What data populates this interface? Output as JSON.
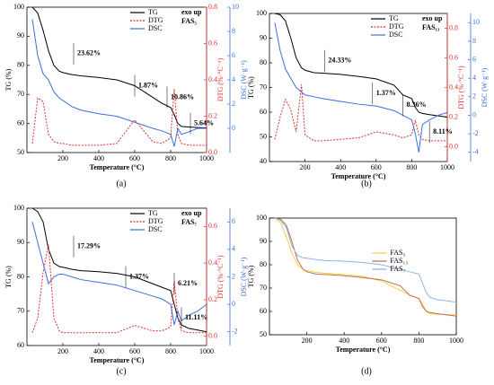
{
  "chart_data": [
    {
      "type": "line",
      "caption": "(a)",
      "xlabel": "Temperature (°C)",
      "ylabel": "TG (%)",
      "y2label": "DTG (%·°C⁻¹)",
      "y3label": "DSC (W·g⁻¹)",
      "xlim": [
        0,
        1000
      ],
      "xticks": [
        200,
        400,
        600,
        800,
        1000
      ],
      "ylim": [
        50,
        100
      ],
      "yticks": [
        50,
        60,
        70,
        80,
        90,
        100
      ],
      "y2lim": [
        0,
        0.8
      ],
      "y2ticks": [
        {
          "value": 0,
          "label": "0.0"
        },
        0.2,
        0.4,
        0.6,
        0.8
      ],
      "y3lim": [
        -2,
        10
      ],
      "y3ticks": [
        0,
        2,
        4,
        6,
        8,
        10
      ],
      "x": [
        30,
        60,
        90,
        120,
        150,
        180,
        200,
        250,
        300,
        400,
        500,
        600,
        700,
        750,
        800,
        820,
        840,
        860,
        900,
        950,
        1000
      ],
      "series": [
        {
          "name": "TG",
          "color": "#000000",
          "axis": "y",
          "values": [
            100,
            98,
            92,
            85,
            80,
            78,
            77.5,
            76.8,
            76.4,
            75.8,
            75,
            73,
            69,
            67,
            65.5,
            63,
            60,
            59,
            58.8,
            58.6,
            58.5
          ]
        },
        {
          "name": "DTG",
          "color": "#e03030",
          "axis": "y2",
          "values": [
            0.05,
            0.3,
            0.28,
            0.1,
            0.06,
            0.05,
            0.05,
            0.04,
            0.04,
            0.04,
            0.05,
            0.18,
            0.06,
            0.05,
            0.08,
            0.35,
            0.1,
            0.05,
            0.04,
            0.04,
            0.04
          ]
        },
        {
          "name": "DSC",
          "color": "#3a6fd8",
          "axis": "y3",
          "values": [
            9,
            6,
            4.5,
            4,
            3,
            2.5,
            2.3,
            1.8,
            1.5,
            1.2,
            1,
            0.5,
            0,
            -0.2,
            -0.5,
            -1.5,
            0,
            -0.5,
            -0.3,
            0,
            0
          ]
        }
      ],
      "annotations": [
        "23.62%",
        "1.87%",
        "10.86%",
        "5.64%"
      ],
      "exo": "exo up",
      "sample": "FAS₅"
    },
    {
      "type": "line",
      "caption": "(b)",
      "xlabel": "Temperature (°C)",
      "ylabel": "TG (%)",
      "y2label": "DTG (%·°C⁻¹)",
      "y3label": "DSC (W·g⁻¹)",
      "xlim": [
        0,
        1000
      ],
      "xticks": [
        200,
        400,
        600,
        800,
        1000
      ],
      "ylim": [
        40,
        100
      ],
      "yticks": [
        40,
        50,
        60,
        70,
        80,
        90,
        100
      ],
      "y2lim": [
        -0.1,
        0.9
      ],
      "y2ticks": [
        {
          "value": 0,
          "label": "0.0"
        },
        0.2,
        0.4,
        0.6,
        0.8
      ],
      "y3lim": [
        -5,
        11
      ],
      "y3ticks": [
        -4,
        -2,
        0,
        2,
        4,
        6,
        8,
        10
      ],
      "x": [
        30,
        60,
        90,
        120,
        150,
        180,
        200,
        250,
        300,
        400,
        500,
        600,
        700,
        750,
        800,
        820,
        840,
        860,
        900,
        950,
        1000
      ],
      "series": [
        {
          "name": "TG",
          "color": "#000000",
          "axis": "y",
          "values": [
            100,
            99.5,
            97,
            90,
            82,
            78,
            77,
            76,
            75.8,
            75.3,
            74.5,
            73.5,
            71,
            67,
            65.5,
            62,
            60,
            59.5,
            59,
            58.5,
            58
          ]
        },
        {
          "name": "DTG",
          "color": "#e03030",
          "axis": "y2",
          "values": [
            0.05,
            0.2,
            0.32,
            0.25,
            0.1,
            0.42,
            0.08,
            0.04,
            0.04,
            0.05,
            0.06,
            0.1,
            0.08,
            0.06,
            0.08,
            0.18,
            0.08,
            0.05,
            0.04,
            0.04,
            0.04
          ]
        },
        {
          "name": "DSC",
          "color": "#3a6fd8",
          "axis": "y3",
          "values": [
            10,
            7,
            5,
            4,
            3,
            2.5,
            2.2,
            2,
            1.8,
            1.5,
            1.2,
            1,
            0.5,
            0,
            -0.5,
            -2,
            -4,
            -1,
            -0.5,
            0,
            0.3
          ]
        }
      ],
      "annotations": [
        "24.33%",
        "1.37%",
        "8.36%",
        "8.11%"
      ],
      "exo": "exo up",
      "sample": "FAS₁₃"
    },
    {
      "type": "line",
      "caption": "(c)",
      "xlabel": "Temperature (°C)",
      "ylabel": "TG (%)",
      "y2label": "DTG (%·°C⁻¹)",
      "y3label": "DSC (W·g⁻¹)",
      "xlim": [
        0,
        1000
      ],
      "xticks": [
        200,
        400,
        600,
        800,
        1000
      ],
      "ylim": [
        60,
        100
      ],
      "yticks": [
        60,
        70,
        80,
        90,
        100
      ],
      "y2lim": [
        -0.05,
        0.7
      ],
      "y2ticks": [
        {
          "value": 0,
          "label": "0.0"
        },
        0.2,
        0.4,
        0.6
      ],
      "y3lim": [
        -3,
        7
      ],
      "y3ticks": [
        -2,
        0,
        2,
        4,
        6
      ],
      "x": [
        30,
        60,
        90,
        120,
        150,
        180,
        200,
        250,
        300,
        400,
        500,
        600,
        700,
        750,
        800,
        820,
        840,
        860,
        900,
        950,
        1000
      ],
      "series": [
        {
          "name": "TG",
          "color": "#000000",
          "axis": "y",
          "values": [
            100,
            99,
            96,
            88,
            84,
            83,
            82.8,
            82.2,
            81.8,
            81.5,
            81,
            80,
            78,
            77,
            76,
            72,
            68,
            66,
            65,
            64.5,
            64
          ]
        },
        {
          "name": "DTG",
          "color": "#e03030",
          "axis": "y2",
          "values": [
            0.02,
            0.1,
            0.35,
            0.5,
            0.1,
            0.03,
            0.02,
            0.02,
            0.02,
            0.02,
            0.02,
            0.06,
            0.03,
            0.03,
            0.05,
            0.3,
            0.1,
            0.03,
            0.02,
            0.02,
            0.02
          ]
        },
        {
          "name": "DSC",
          "color": "#3a6fd8",
          "axis": "y3",
          "values": [
            6,
            4.5,
            3,
            1.5,
            2,
            2.2,
            2.2,
            2,
            1.8,
            1.6,
            1.4,
            1,
            0.6,
            0.4,
            0,
            -1.5,
            -0.5,
            -1.2,
            -0.8,
            -0.5,
            0
          ]
        }
      ],
      "annotations": [
        "17.29%",
        "1.37%",
        "6.21%",
        "11.11%"
      ],
      "exo": "exo up",
      "sample": "FAS₇"
    },
    {
      "type": "line",
      "caption": "(d)",
      "xlabel": "Temperature (°C)",
      "ylabel": "TG (%)",
      "xlim": [
        0,
        1000
      ],
      "xticks": [
        200,
        400,
        600,
        800,
        1000
      ],
      "ylim": [
        50,
        100
      ],
      "yticks": [
        50,
        60,
        70,
        80,
        90,
        100
      ],
      "x": [
        30,
        60,
        90,
        120,
        150,
        180,
        200,
        250,
        300,
        400,
        500,
        600,
        700,
        750,
        800,
        820,
        840,
        860,
        900,
        950,
        1000
      ],
      "series": [
        {
          "name": "FAS₅",
          "color": "#f2cf4a",
          "axis": "y",
          "values": [
            100,
            98,
            92,
            85,
            80,
            78,
            77.5,
            76.8,
            76.4,
            75.8,
            75,
            73,
            69,
            67,
            65.5,
            63,
            60,
            59,
            58.8,
            58.6,
            58.5
          ]
        },
        {
          "name": "FAS₁₃",
          "color": "#c07048",
          "axis": "y",
          "values": [
            100,
            99.5,
            97,
            90,
            82,
            78,
            77,
            76,
            75.8,
            75.3,
            74.5,
            73.5,
            71,
            67,
            65.5,
            62,
            60,
            59.5,
            59,
            58.5,
            58
          ]
        },
        {
          "name": "FAS₇",
          "color": "#8fb4e3",
          "axis": "y",
          "values": [
            100,
            99,
            96,
            88,
            84,
            83,
            82.8,
            82.2,
            81.8,
            81.5,
            81,
            80,
            78,
            77,
            76,
            72,
            68,
            66,
            65,
            64.5,
            64
          ]
        }
      ]
    }
  ]
}
